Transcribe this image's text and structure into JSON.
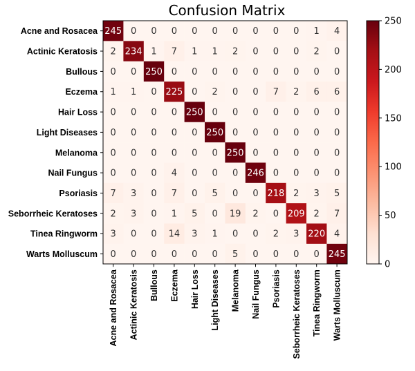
{
  "chart_data": {
    "type": "heatmap",
    "title": "Confusion Matrix",
    "xlabel": "",
    "ylabel": "",
    "row_labels": [
      "Acne and Rosacea",
      "Actinic Keratosis",
      "Bullous",
      "Eczema",
      "Hair Loss",
      "Light Diseases",
      "Melanoma",
      "Nail Fungus",
      "Psoriasis",
      "Seborrheic Keratoses",
      "Tinea Ringworm",
      "Warts Molluscum"
    ],
    "col_labels": [
      "Acne and Rosacea",
      "Actinic Keratosis",
      "Bullous",
      "Eczema",
      "Hair Loss",
      "Light Diseases",
      "Melanoma",
      "Nail Fungus",
      "Psoriasis",
      "Seborrheic Keratoses",
      "Tinea Ringworm",
      "Warts Molluscum"
    ],
    "values": [
      [
        245,
        0,
        0,
        0,
        0,
        0,
        0,
        0,
        0,
        0,
        1,
        4
      ],
      [
        2,
        234,
        1,
        7,
        1,
        1,
        2,
        0,
        0,
        0,
        2,
        0
      ],
      [
        0,
        0,
        250,
        0,
        0,
        0,
        0,
        0,
        0,
        0,
        0,
        0
      ],
      [
        1,
        1,
        0,
        225,
        0,
        2,
        0,
        0,
        7,
        2,
        6,
        6
      ],
      [
        0,
        0,
        0,
        0,
        250,
        0,
        0,
        0,
        0,
        0,
        0,
        0
      ],
      [
        0,
        0,
        0,
        0,
        0,
        250,
        0,
        0,
        0,
        0,
        0,
        0
      ],
      [
        0,
        0,
        0,
        0,
        0,
        0,
        250,
        0,
        0,
        0,
        0,
        0
      ],
      [
        0,
        0,
        0,
        4,
        0,
        0,
        0,
        246,
        0,
        0,
        0,
        0
      ],
      [
        7,
        3,
        0,
        7,
        0,
        5,
        0,
        0,
        218,
        2,
        3,
        5
      ],
      [
        2,
        3,
        0,
        1,
        5,
        0,
        19,
        2,
        0,
        209,
        2,
        7
      ],
      [
        3,
        0,
        0,
        14,
        3,
        1,
        0,
        0,
        2,
        3,
        220,
        4
      ],
      [
        0,
        0,
        0,
        0,
        0,
        0,
        5,
        0,
        0,
        0,
        0,
        245
      ]
    ],
    "colorbar": {
      "min": 0,
      "max": 250,
      "ticks": [
        0,
        50,
        100,
        150,
        200,
        250
      ],
      "colormap": "Reds"
    }
  }
}
